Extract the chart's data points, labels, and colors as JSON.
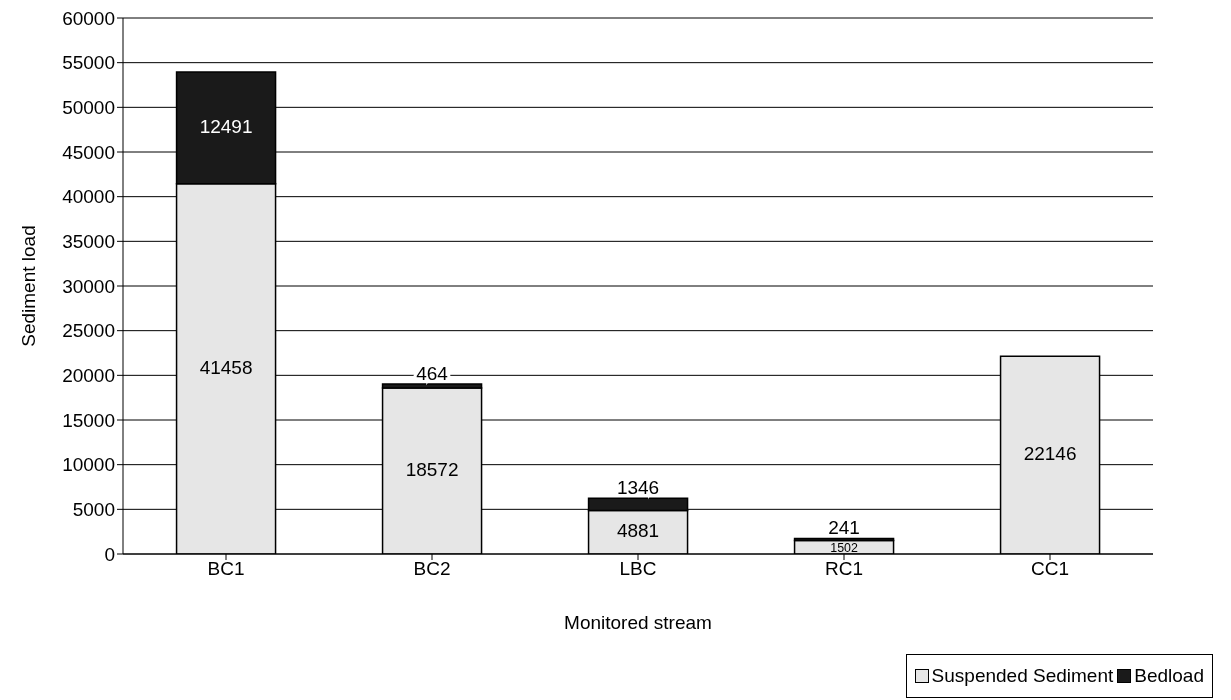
{
  "chart_data": {
    "type": "bar",
    "stacked": true,
    "xlabel": "Monitored stream",
    "ylabel": "Sediment load",
    "categories": [
      "BC1",
      "BC2",
      "LBC",
      "RC1",
      "CC1"
    ],
    "series": [
      {
        "name": "Suspended Sediment",
        "color": "#e6e6e6",
        "values": [
          41458,
          18572,
          4881,
          1502,
          22146
        ]
      },
      {
        "name": "Bedload",
        "color": "#1a1a1a",
        "values": [
          12491,
          464,
          1346,
          241,
          null
        ]
      }
    ],
    "ylim": [
      0,
      60000
    ],
    "yticks": [
      0,
      5000,
      10000,
      15000,
      20000,
      25000,
      30000,
      35000,
      40000,
      45000,
      50000,
      55000,
      60000
    ],
    "grid": "y",
    "legend": "bottom right",
    "data_labels": true
  }
}
